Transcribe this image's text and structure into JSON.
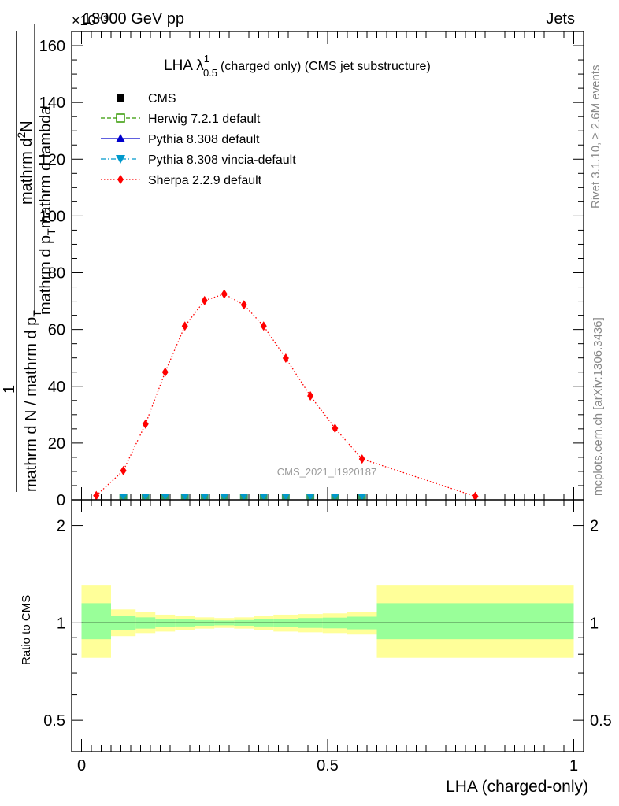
{
  "header": {
    "energy_label": "13000 GeV pp",
    "exponent_label": "×10⁻³",
    "process_label": "Jets"
  },
  "side_labels": {
    "rivet": "Rivet 3.1.10, ≥ 2.6M events",
    "mcplots": "mcplots.cern.ch [arXiv:1306.3436]"
  },
  "watermark": "CMS_2021_I1920187",
  "title": {
    "main": "LHA λ",
    "sup": "1",
    "sub": "0.5",
    "rest": "(charged only) (CMS jet substructure)"
  },
  "y_axis_label": {
    "numerator_1": "1",
    "denominator_1": "mathrm d N / mathrm d p",
    "denominator_1_sub": "T",
    "numerator_2": "mathrm d",
    "numerator_2_sup": "2",
    "numerator_2_tail": "N",
    "denominator_2": "mathrm d p",
    "denominator_2_sub": "T",
    "denominator_2_tail": "mathrm d lambda"
  },
  "ratio_ylabel": "Ratio to CMS",
  "x_axis_label": "LHA (charged-only)",
  "legend": [
    {
      "label": "CMS",
      "color": "#000000",
      "marker": "square-filled",
      "line": "none"
    },
    {
      "label": "Herwig 7.2.1 default",
      "color": "#339900",
      "marker": "square-open",
      "line": "dashed"
    },
    {
      "label": "Pythia 8.308 default",
      "color": "#0000cc",
      "marker": "triangle-up",
      "line": "solid"
    },
    {
      "label": "Pythia 8.308 vincia-default",
      "color": "#0099cc",
      "marker": "triangle-down",
      "line": "dashdot"
    },
    {
      "label": "Sherpa 2.2.9 default",
      "color": "#ff0000",
      "marker": "diamond",
      "line": "dotted"
    }
  ],
  "chart_data": [
    {
      "type": "line",
      "panel": "main",
      "ylim": [
        0,
        165
      ],
      "xlim": [
        -0.02,
        1.02
      ],
      "yticks": [
        0,
        20,
        40,
        60,
        80,
        100,
        120,
        140,
        160
      ],
      "series": [
        {
          "name": "Sherpa 2.2.9 default",
          "color": "#ff0000",
          "x": [
            0.03,
            0.085,
            0.13,
            0.17,
            0.21,
            0.25,
            0.29,
            0.33,
            0.37,
            0.415,
            0.465,
            0.515,
            0.57,
            0.8
          ],
          "y": [
            1.5,
            10.3,
            26.7,
            45.0,
            61.2,
            70.2,
            72.5,
            68.7,
            61.2,
            49.9,
            36.6,
            25.2,
            14.4,
            1.2
          ]
        },
        {
          "name": "Pythia 8.308 vincia-default",
          "color": "#0099cc",
          "x": [
            0.085,
            0.13,
            0.17,
            0.21,
            0.25,
            0.29,
            0.33,
            0.37,
            0.415,
            0.465,
            0.515,
            0.57
          ],
          "y": [
            0.5,
            0.5,
            0.5,
            0.5,
            0.5,
            0.5,
            0.5,
            0.5,
            0.5,
            0.5,
            0.5,
            0.5
          ]
        }
      ]
    },
    {
      "type": "area",
      "panel": "ratio",
      "ylim": [
        0.4,
        2.4
      ],
      "ylog": true,
      "xlim": [
        -0.02,
        1.02
      ],
      "yticks": [
        0.5,
        1,
        2
      ],
      "xticks": [
        0,
        0.5,
        1
      ],
      "reference_line": 1.0,
      "bins": [
        {
          "xlo": 0.0,
          "xhi": 0.06,
          "yel_lo": 0.78,
          "yel_hi": 1.31,
          "grn_lo": 0.89,
          "grn_hi": 1.15
        },
        {
          "xlo": 0.06,
          "xhi": 0.11,
          "yel_lo": 0.91,
          "yel_hi": 1.1,
          "grn_lo": 0.95,
          "grn_hi": 1.05
        },
        {
          "xlo": 0.11,
          "xhi": 0.15,
          "yel_lo": 0.93,
          "yel_hi": 1.08,
          "grn_lo": 0.96,
          "grn_hi": 1.04
        },
        {
          "xlo": 0.15,
          "xhi": 0.19,
          "yel_lo": 0.94,
          "yel_hi": 1.06,
          "grn_lo": 0.97,
          "grn_hi": 1.03
        },
        {
          "xlo": 0.19,
          "xhi": 0.23,
          "yel_lo": 0.95,
          "yel_hi": 1.05,
          "grn_lo": 0.975,
          "grn_hi": 1.025
        },
        {
          "xlo": 0.23,
          "xhi": 0.27,
          "yel_lo": 0.96,
          "yel_hi": 1.04,
          "grn_lo": 0.98,
          "grn_hi": 1.02
        },
        {
          "xlo": 0.27,
          "xhi": 0.31,
          "yel_lo": 0.965,
          "yel_hi": 1.035,
          "grn_lo": 0.983,
          "grn_hi": 1.017
        },
        {
          "xlo": 0.31,
          "xhi": 0.35,
          "yel_lo": 0.96,
          "yel_hi": 1.04,
          "grn_lo": 0.98,
          "grn_hi": 1.02
        },
        {
          "xlo": 0.35,
          "xhi": 0.39,
          "yel_lo": 0.95,
          "yel_hi": 1.05,
          "grn_lo": 0.975,
          "grn_hi": 1.025
        },
        {
          "xlo": 0.39,
          "xhi": 0.44,
          "yel_lo": 0.94,
          "yel_hi": 1.06,
          "grn_lo": 0.97,
          "grn_hi": 1.03
        },
        {
          "xlo": 0.44,
          "xhi": 0.49,
          "yel_lo": 0.935,
          "yel_hi": 1.065,
          "grn_lo": 0.965,
          "grn_hi": 1.035
        },
        {
          "xlo": 0.49,
          "xhi": 0.54,
          "yel_lo": 0.93,
          "yel_hi": 1.07,
          "grn_lo": 0.962,
          "grn_hi": 1.038
        },
        {
          "xlo": 0.54,
          "xhi": 0.6,
          "yel_lo": 0.92,
          "yel_hi": 1.08,
          "grn_lo": 0.955,
          "grn_hi": 1.045
        },
        {
          "xlo": 0.6,
          "xhi": 1.0,
          "yel_lo": 0.78,
          "yel_hi": 1.31,
          "grn_lo": 0.89,
          "grn_hi": 1.15
        }
      ]
    }
  ]
}
